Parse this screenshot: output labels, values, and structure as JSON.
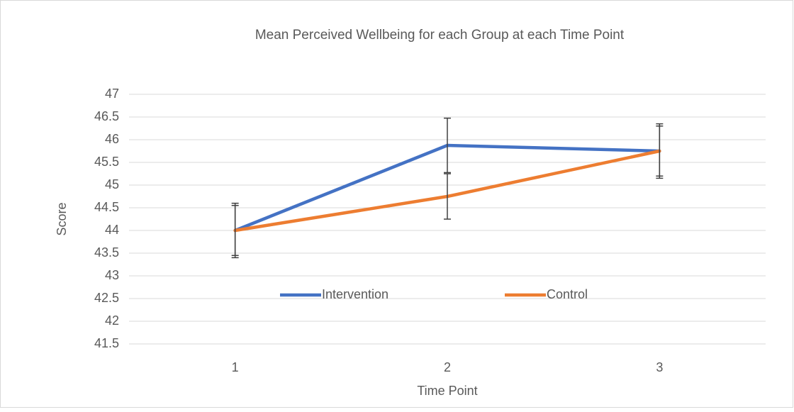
{
  "chart_data": {
    "type": "line",
    "title": "Mean Perceived Wellbeing for each  Group at each Time Point",
    "x_label": "Time Point",
    "y_label": "Score",
    "categories": [
      "1",
      "2",
      "3"
    ],
    "series": [
      {
        "name": "Intervention",
        "color": "#4472c4",
        "values": [
          44,
          45.875,
          45.75
        ],
        "errors": [
          0.6,
          0.6,
          0.6
        ]
      },
      {
        "name": "Control",
        "color": "#ed7d31",
        "values": [
          44,
          44.75,
          45.75
        ],
        "errors": [
          0.55,
          0.5,
          0.55
        ]
      }
    ],
    "ylim": [
      41.5,
      47
    ],
    "yticks": [
      41.5,
      42,
      42.5,
      43,
      43.5,
      44,
      44.5,
      45,
      45.5,
      46,
      46.5,
      47
    ],
    "grid": true,
    "legend": "inside-bottom"
  }
}
